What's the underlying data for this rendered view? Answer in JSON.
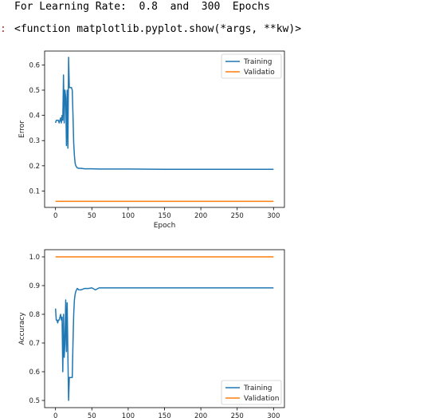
{
  "output": {
    "print_line": "For Learning Rate:  0.8  and  300  Epochs",
    "result_prompt": ":",
    "result_text": "<function matplotlib.pyplot.show(*args, **kw)>"
  },
  "colors": {
    "training": "#1f77b4",
    "validation": "#ff7f0e"
  },
  "chart_data": [
    {
      "type": "line",
      "title": "",
      "xlabel": "Epoch",
      "ylabel": "Error",
      "xlim": [
        -15,
        315
      ],
      "ylim": [
        0.035,
        0.655
      ],
      "xticks": [
        0,
        50,
        100,
        150,
        200,
        250,
        300
      ],
      "yticks": [
        0.1,
        0.2,
        0.3,
        0.4,
        0.5,
        0.6
      ],
      "ytick_labels": [
        "0.1",
        "0.2",
        "0.3",
        "0.4",
        "0.5",
        "0.6"
      ],
      "legend": {
        "position": "top-right",
        "entries": [
          "Training",
          "Validatio"
        ]
      },
      "series": [
        {
          "name": "Training",
          "x": [
            0,
            1,
            2,
            3,
            4,
            5,
            6,
            7,
            8,
            9,
            10,
            11,
            12,
            13,
            14,
            15,
            16,
            17,
            18,
            19,
            20,
            21,
            22,
            23,
            24,
            25,
            26,
            27,
            28,
            29,
            30,
            32,
            35,
            40,
            50,
            60,
            80,
            100,
            150,
            200,
            250,
            300
          ],
          "y": [
            0.37,
            0.38,
            0.38,
            0.38,
            0.38,
            0.37,
            0.38,
            0.39,
            0.37,
            0.4,
            0.38,
            0.56,
            0.37,
            0.5,
            0.47,
            0.28,
            0.5,
            0.27,
            0.63,
            0.51,
            0.51,
            0.51,
            0.51,
            0.5,
            0.4,
            0.29,
            0.24,
            0.21,
            0.2,
            0.195,
            0.192,
            0.19,
            0.19,
            0.188,
            0.188,
            0.187,
            0.187,
            0.187,
            0.186,
            0.186,
            0.186,
            0.186
          ]
        },
        {
          "name": "Validatio",
          "x": [
            0,
            300
          ],
          "y": [
            0.059,
            0.059
          ]
        }
      ]
    },
    {
      "type": "line",
      "title": "",
      "xlabel": "",
      "ylabel": "Accuracy",
      "xlim": [
        -15,
        315
      ],
      "ylim": [
        0.475,
        1.025
      ],
      "xticks": [
        0,
        50,
        100,
        150,
        200,
        250,
        300
      ],
      "yticks": [
        0.5,
        0.6,
        0.7,
        0.8,
        0.9,
        1.0
      ],
      "ytick_labels": [
        "0.5",
        "0.6",
        "0.7",
        "0.8",
        "0.9",
        "1.0"
      ],
      "legend": {
        "position": "bottom-right",
        "entries": [
          "Training",
          "Validation"
        ]
      },
      "series": [
        {
          "name": "Training",
          "x": [
            0,
            1,
            2,
            3,
            4,
            5,
            6,
            7,
            8,
            9,
            10,
            11,
            12,
            13,
            14,
            15,
            16,
            17,
            18,
            19,
            20,
            21,
            22,
            23,
            24,
            25,
            26,
            27,
            28,
            29,
            30,
            32,
            35,
            40,
            45,
            50,
            55,
            60,
            80,
            100,
            150,
            200,
            250,
            300
          ],
          "y": [
            0.82,
            0.78,
            0.78,
            0.77,
            0.78,
            0.78,
            0.79,
            0.8,
            0.78,
            0.79,
            0.6,
            0.8,
            0.65,
            0.7,
            0.85,
            0.67,
            0.84,
            0.66,
            0.5,
            0.58,
            0.58,
            0.58,
            0.58,
            0.58,
            0.7,
            0.8,
            0.85,
            0.87,
            0.88,
            0.885,
            0.89,
            0.885,
            0.885,
            0.89,
            0.89,
            0.892,
            0.885,
            0.892,
            0.892,
            0.892,
            0.892,
            0.892,
            0.892,
            0.892
          ]
        },
        {
          "name": "Validation",
          "x": [
            0,
            300
          ],
          "y": [
            1.0,
            1.0
          ]
        }
      ]
    }
  ]
}
